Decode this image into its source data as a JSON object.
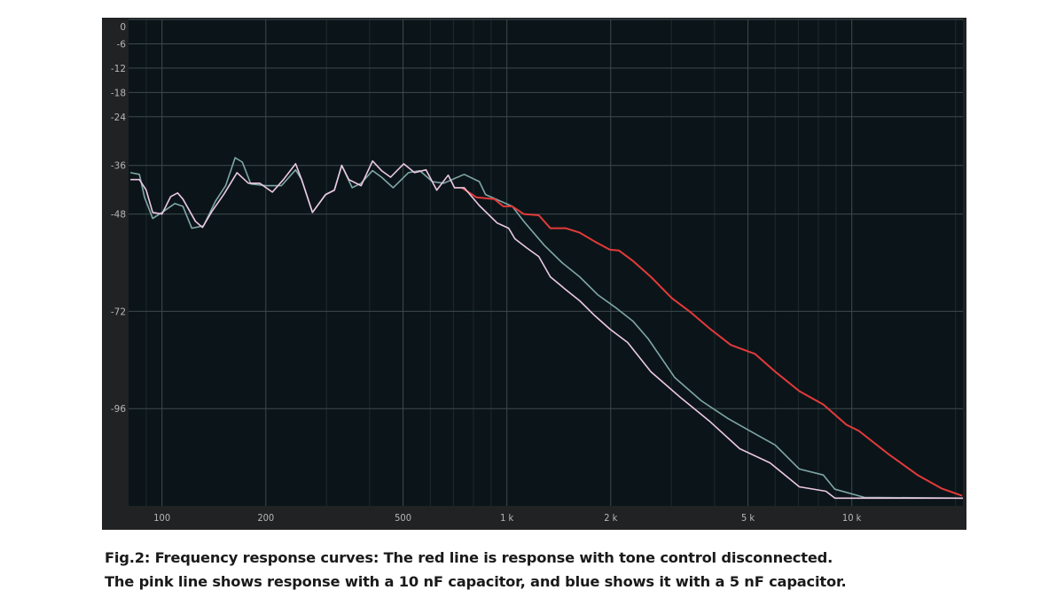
{
  "chart_data": {
    "type": "line",
    "title": "",
    "xlabel": "",
    "ylabel": "",
    "x_scale": "log",
    "xlim": [
      80,
      21000
    ],
    "ylim": [
      -120,
      0
    ],
    "grid": true,
    "x_ticks": [
      {
        "value": 100,
        "label": "100"
      },
      {
        "value": 200,
        "label": "200"
      },
      {
        "value": 500,
        "label": "500"
      },
      {
        "value": 1000,
        "label": "1 k"
      },
      {
        "value": 2000,
        "label": "2 k"
      },
      {
        "value": 5000,
        "label": "5 k"
      },
      {
        "value": 10000,
        "label": "10 k"
      }
    ],
    "y_ticks": [
      {
        "value": 0,
        "label": "0"
      },
      {
        "value": -6,
        "label": "-6"
      },
      {
        "value": -12,
        "label": "-12"
      },
      {
        "value": -18,
        "label": "-18"
      },
      {
        "value": -24,
        "label": "-24"
      },
      {
        "value": -36,
        "label": "-36"
      },
      {
        "value": -48,
        "label": "-48"
      },
      {
        "value": -72,
        "label": "-72"
      },
      {
        "value": -96,
        "label": "-96"
      }
    ],
    "colors": {
      "background": "#0b1519",
      "frame": "#202224",
      "grid": "#3c4a4c",
      "tick_text": "#b8b8b8"
    },
    "series": [
      {
        "color": "#7fa6a6",
        "x": [
          81,
          86,
          89,
          94,
          100,
          109,
          115,
          122,
          132,
          143,
          153,
          163,
          171,
          181,
          200,
          222,
          244,
          254,
          273,
          298,
          316,
          332,
          356,
          378,
          408,
          433,
          468,
          518,
          559,
          608,
          656,
          752,
          832,
          867,
          1036,
          1119,
          1283,
          1445,
          1626,
          1832,
          2060,
          2323,
          2570,
          3070,
          3665,
          4383,
          5236,
          6000,
          7047,
          8271,
          8934,
          10870,
          21000
        ],
        "y": [
          -37.8,
          -38.2,
          -43.9,
          -49.1,
          -47.6,
          -45.4,
          -46.1,
          -51.5,
          -50.9,
          -44.8,
          -41,
          -34.1,
          -35.2,
          -40.6,
          -41,
          -41,
          -37.1,
          -39.5,
          -47.6,
          -43.2,
          -42.1,
          -36,
          -41.5,
          -40.4,
          -37.3,
          -38.9,
          -41.5,
          -37.8,
          -37.3,
          -40,
          -40.4,
          -38.2,
          -40,
          -43.2,
          -46.1,
          -49.8,
          -55.7,
          -60,
          -63.5,
          -67.9,
          -71,
          -74.5,
          -78.8,
          -88.4,
          -94.1,
          -98.5,
          -102.2,
          -105,
          -110.9,
          -112.4,
          -115.9,
          -117.9,
          -118.1
        ]
      },
      {
        "color": "#e43a3a",
        "x": [
          739,
          817,
          920,
          976,
          1036,
          1119,
          1238,
          1337,
          1479,
          1626,
          1799,
          1990,
          2113,
          2323,
          2616,
          3013,
          3396,
          3890,
          4460,
          5236,
          6000,
          7047,
          8271,
          9655,
          10490,
          12760,
          15520,
          18200,
          20890
        ],
        "y": [
          -41.5,
          -43.9,
          -44.3,
          -46.1,
          -46.1,
          -48,
          -48.3,
          -51.5,
          -51.5,
          -52.6,
          -54.8,
          -56.8,
          -57,
          -59.6,
          -63.5,
          -68.8,
          -72.1,
          -76.4,
          -80.3,
          -82.5,
          -86.9,
          -91.7,
          -95,
          -100,
          -101.5,
          -107.2,
          -112.4,
          -115.7,
          -117.5
        ]
      },
      {
        "color": "#ecc8e4",
        "x": [
          81,
          86,
          90,
          94,
          100,
          106,
          111,
          115,
          125,
          131,
          140,
          151,
          165,
          178,
          192,
          209,
          226,
          244,
          254,
          273,
          298,
          316,
          332,
          348,
          378,
          408,
          433,
          460,
          502,
          540,
          583,
          626,
          676,
          705,
          752,
          832,
          937,
          1012,
          1055,
          1140,
          1238,
          1337,
          1479,
          1626,
          1799,
          1990,
          2240,
          2616,
          3200,
          3890,
          4732,
          5794,
          7047,
          8414,
          8934,
          21000
        ],
        "y": [
          -39.5,
          -39.5,
          -42.1,
          -47.6,
          -48,
          -43.7,
          -42.8,
          -44.3,
          -49.8,
          -51.3,
          -47.2,
          -43.2,
          -37.8,
          -40.4,
          -40.4,
          -42.6,
          -39.3,
          -35.6,
          -39.5,
          -47.6,
          -43.2,
          -42.1,
          -36,
          -39.5,
          -41,
          -34.9,
          -37.3,
          -38.9,
          -35.6,
          -37.8,
          -37.1,
          -42.1,
          -38.4,
          -41.5,
          -41.5,
          -45.9,
          -50.2,
          -51.5,
          -54.1,
          -56.3,
          -58.5,
          -63.5,
          -66.6,
          -69.4,
          -73.1,
          -76.4,
          -79.7,
          -86.9,
          -93.4,
          -99.3,
          -105.9,
          -109.4,
          -115.3,
          -116.4,
          -118.1,
          -118.1
        ]
      }
    ]
  },
  "caption": {
    "line1": "Fig.2: Frequency response curves: The red line is response with tone control disconnected.",
    "line2": "The pink line shows response with a 10 nF capacitor, and blue shows it with a 5 nF capacitor."
  }
}
